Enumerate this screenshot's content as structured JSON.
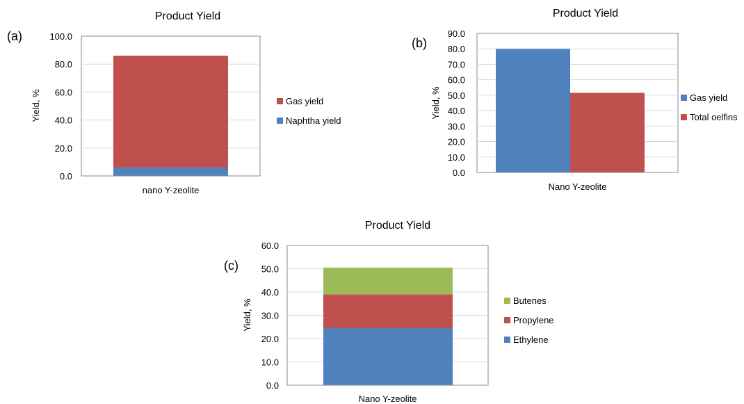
{
  "chart_data": [
    {
      "type": "bar",
      "stacked": true,
      "panel_label": "(a)",
      "title": "Product Yield",
      "xlabel": "",
      "ylabel": "Yield, %",
      "categories": [
        "nano Y-zeolite"
      ],
      "ylim": [
        0,
        100
      ],
      "yticks": [
        "0.0",
        "20.0",
        "40.0",
        "60.0",
        "80.0",
        "100.0"
      ],
      "grid": true,
      "legend_position": "right",
      "series": [
        {
          "name": "Naphtha yield",
          "values": [
            6
          ],
          "color": "#4F81BD"
        },
        {
          "name": "Gas yield",
          "values": [
            80
          ],
          "color": "#C0504D"
        }
      ],
      "legend_order": [
        "Gas yield",
        "Naphtha yield"
      ]
    },
    {
      "type": "bar",
      "stacked": false,
      "panel_label": "(b)",
      "title": "Product Yield",
      "xlabel": "",
      "ylabel": "Yield, %",
      "categories": [
        "Nano Y-zeolite"
      ],
      "ylim": [
        0,
        90
      ],
      "yticks": [
        "0.0",
        "10.0",
        "20.0",
        "30.0",
        "40.0",
        "50.0",
        "60.0",
        "70.0",
        "80.0",
        "90.0"
      ],
      "grid": true,
      "legend_position": "right",
      "series": [
        {
          "name": "Gas yield",
          "values": [
            80
          ],
          "color": "#4F81BD"
        },
        {
          "name": "Total oelfins",
          "values": [
            51.5
          ],
          "color": "#C0504D"
        }
      ],
      "legend_order": [
        "Gas yield",
        "Total oelfins"
      ]
    },
    {
      "type": "bar",
      "stacked": true,
      "panel_label": "(c)",
      "title": "Product Yield",
      "xlabel": "",
      "ylabel": "Yield, %",
      "categories": [
        "Nano Y-zeolite"
      ],
      "ylim": [
        0,
        60
      ],
      "yticks": [
        "0.0",
        "10.0",
        "20.0",
        "30.0",
        "40.0",
        "50.0",
        "60.0"
      ],
      "grid": true,
      "legend_position": "right",
      "series": [
        {
          "name": "Ethylene",
          "values": [
            24.5
          ],
          "color": "#4F81BD"
        },
        {
          "name": "Propylene",
          "values": [
            14.5
          ],
          "color": "#C0504D"
        },
        {
          "name": "Butenes",
          "values": [
            11.5
          ],
          "color": "#9BBB59"
        }
      ],
      "legend_order": [
        "Butenes",
        "Propylene",
        "Ethylene"
      ]
    }
  ]
}
